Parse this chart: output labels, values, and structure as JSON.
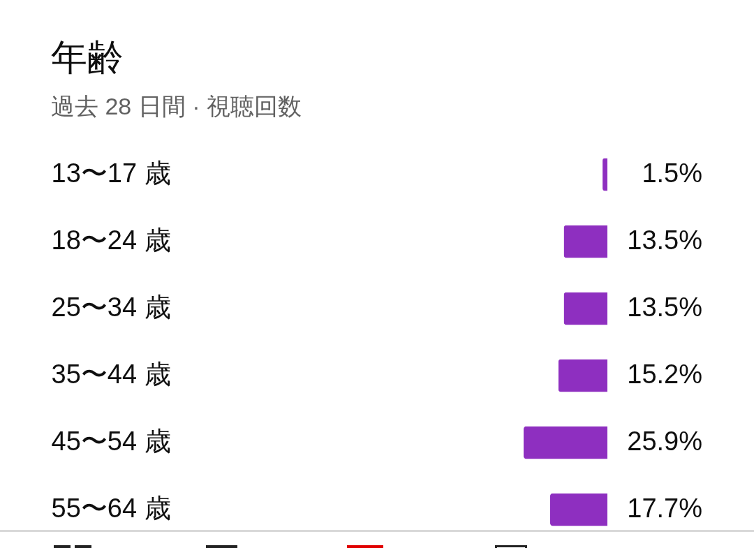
{
  "chart_data": {
    "type": "bar",
    "orientation": "horizontal",
    "title": "年齢",
    "subtitle": "過去 28 日間 · 視聴回数",
    "categories": [
      "13〜17 歳",
      "18〜24 歳",
      "25〜34 歳",
      "35〜44 歳",
      "45〜54 歳",
      "55〜64 歳"
    ],
    "values": [
      1.5,
      13.5,
      13.5,
      15.2,
      25.9,
      17.7
    ],
    "value_labels": [
      "1.5%",
      "13.5%",
      "13.5%",
      "15.2%",
      "25.9%",
      "17.7%"
    ],
    "color": "#8e2fc0",
    "tick_labels": "y"
  }
}
